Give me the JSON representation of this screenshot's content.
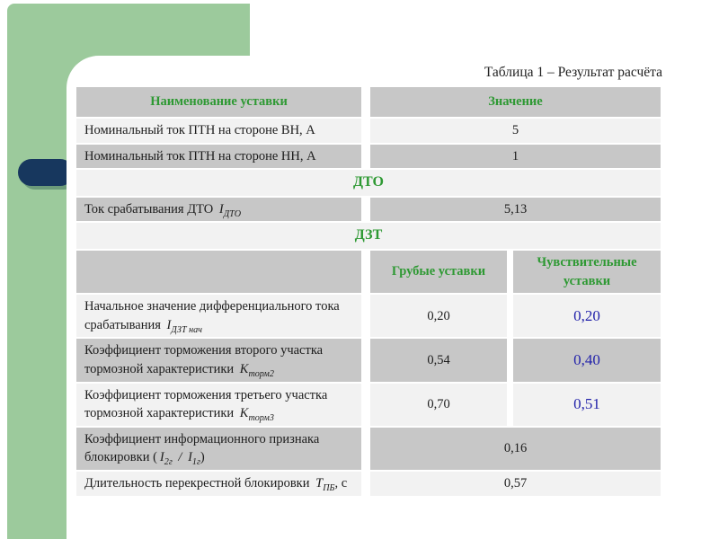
{
  "slide": {
    "title": "Таблица 1 – Результат расчёта",
    "colors": {
      "band_green": "#9cca9c",
      "pill_navy": "#17375e",
      "cell_gray": "#c7c7c7",
      "cell_light": "#f2f2f2",
      "header_green": "#2e9933",
      "value_blue": "#2323aa"
    }
  },
  "table": {
    "rows": [
      {
        "type": "header2",
        "bg": "gray",
        "name_label": "Наименование уставки",
        "value_label": "Значение"
      },
      {
        "type": "data2",
        "bg": "light",
        "name": [
          {
            "t": "Номинальный ток ПТН на стороне ВН, А"
          }
        ],
        "value": "5"
      },
      {
        "type": "data2",
        "bg": "gray",
        "name": [
          {
            "t": "Номинальный ток ПТН на стороне НН, А"
          }
        ],
        "value": "1"
      },
      {
        "type": "section",
        "bg": "light",
        "label": "ДТО"
      },
      {
        "type": "data2",
        "bg": "gray",
        "name": [
          {
            "t": "Ток срабатывания ДТО "
          },
          {
            "t": "I",
            "i": true
          },
          {
            "t": "ДТО",
            "sub": true
          }
        ],
        "value": "5,13"
      },
      {
        "type": "section",
        "bg": "light",
        "label": "ДЗТ"
      },
      {
        "type": "header3",
        "bg": "gray",
        "coarse_label": "Грубые уставки",
        "sensitive_label": "Чувствительные уставки"
      },
      {
        "type": "data3",
        "bg": "light",
        "name": [
          {
            "t": "Начальное значение дифференциального тока срабатывания "
          },
          {
            "t": "I",
            "i": true
          },
          {
            "t": "ДЗТ нач",
            "sub": true
          }
        ],
        "coarse": "0,20",
        "sensitive": "0,20"
      },
      {
        "type": "data3",
        "bg": "gray",
        "name": [
          {
            "t": "Коэффициент торможения второго участка тормозной характеристики "
          },
          {
            "t": "K",
            "i": true
          },
          {
            "t": "торм2",
            "sub": true
          }
        ],
        "coarse": "0,54",
        "sensitive": "0,40"
      },
      {
        "type": "data3",
        "bg": "light",
        "name": [
          {
            "t": "Коэффициент торможения третьего участка тормозной характеристики "
          },
          {
            "t": "K",
            "i": true
          },
          {
            "t": "торм3",
            "sub": true
          }
        ],
        "coarse": "0,70",
        "sensitive": "0,51"
      },
      {
        "type": "data2",
        "bg": "gray",
        "name": [
          {
            "t": "Коэффициент информационного признака блокировки ("
          },
          {
            "t": "I",
            "i": true
          },
          {
            "t": "2г",
            "sub": true
          },
          {
            "t": " / ",
            "i": true
          },
          {
            "t": "I",
            "i": true
          },
          {
            "t": "1г",
            "sub": true
          },
          {
            "t": ")"
          }
        ],
        "value": "0,16"
      },
      {
        "type": "data2",
        "bg": "light",
        "name": [
          {
            "t": "Длительность перекрестной блокировки "
          },
          {
            "t": "T",
            "i": true
          },
          {
            "t": "ПБ",
            "sub": true
          },
          {
            "t": ", с"
          }
        ],
        "value": "0,57"
      }
    ]
  }
}
